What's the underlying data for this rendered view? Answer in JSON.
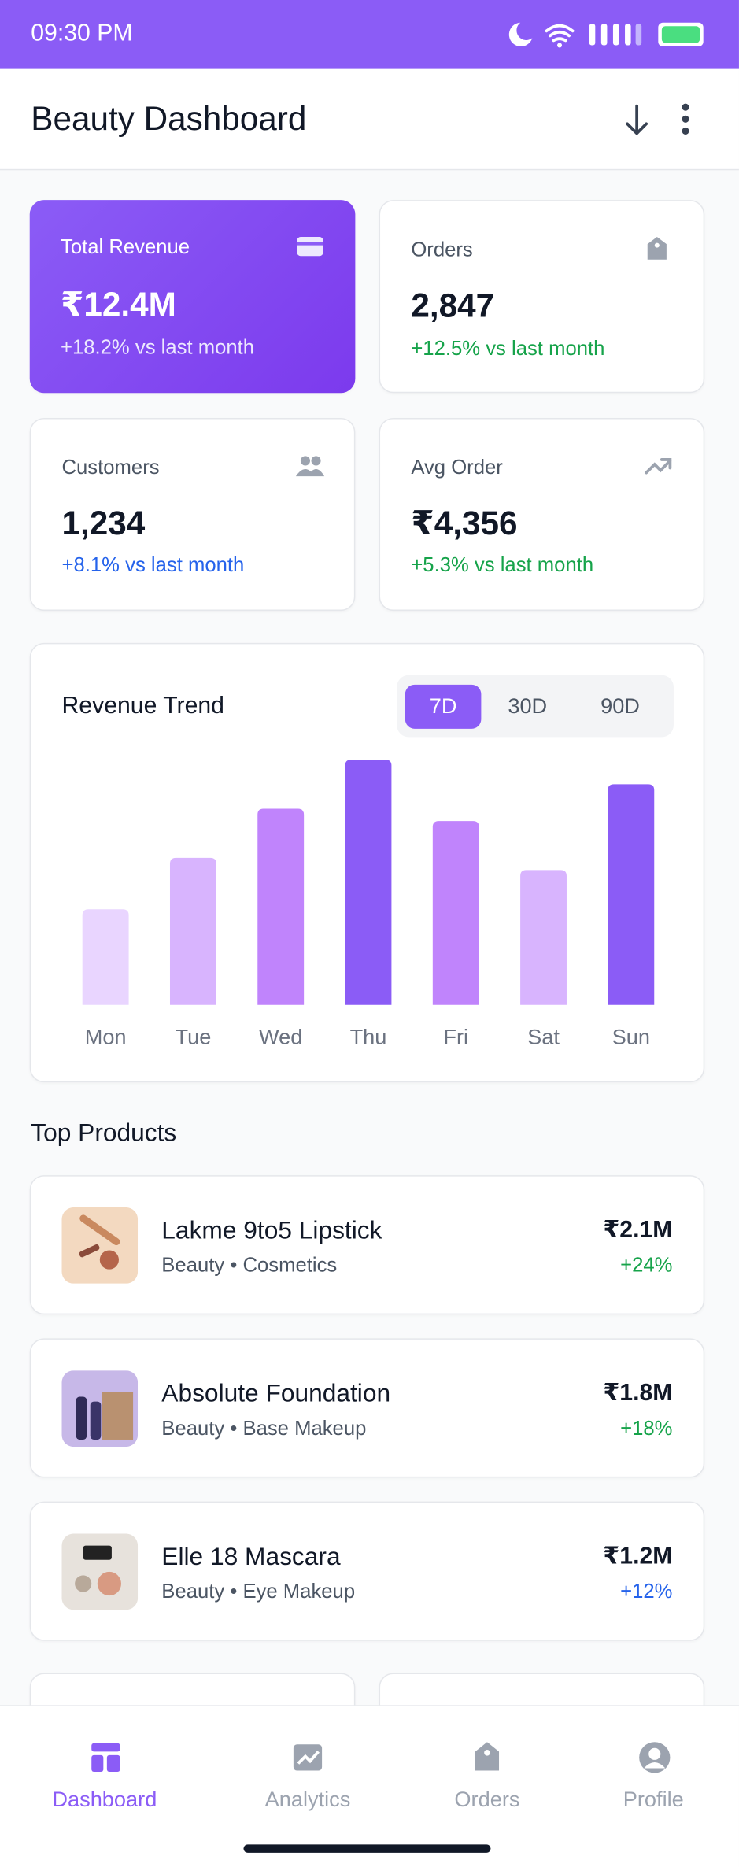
{
  "status_bar": {
    "time": "09:30 PM"
  },
  "header": {
    "title": "Beauty Dashboard"
  },
  "stats": [
    {
      "label": "Total Revenue",
      "value": "₹12.4M",
      "change": "+18.2% vs last month"
    },
    {
      "label": "Orders",
      "value": "2,847",
      "change": "+12.5% vs last month"
    },
    {
      "label": "Customers",
      "value": "1,234",
      "change": "+8.1% vs last month"
    },
    {
      "label": "Avg Order",
      "value": "₹4,356",
      "change": "+5.3% vs last month"
    }
  ],
  "revenue_trend": {
    "title": "Revenue Trend",
    "tabs": [
      "7D",
      "30D",
      "90D"
    ],
    "days": [
      "Mon",
      "Tue",
      "Wed",
      "Thu",
      "Fri",
      "Sat",
      "Sun"
    ],
    "values": [
      39,
      60,
      80,
      100,
      75,
      55,
      90
    ],
    "colors": [
      "#e9d5ff",
      "#d8b4fe",
      "#c084fc",
      "#8b5cf6",
      "#c084fc",
      "#d8b4fe",
      "#8b5cf6"
    ]
  },
  "top_products": {
    "title": "Top Products",
    "items": [
      {
        "name": "Lakme 9to5 Lipstick",
        "category": "Beauty • Cosmetics",
        "revenue": "₹2.1M",
        "growth": "+24%"
      },
      {
        "name": "Absolute Foundation",
        "category": "Beauty • Base Makeup",
        "revenue": "₹1.8M",
        "growth": "+18%"
      },
      {
        "name": "Elle 18 Mascara",
        "category": "Beauty • Eye Makeup",
        "revenue": "₹1.2M",
        "growth": "+12%"
      }
    ]
  },
  "nav": [
    "Dashboard",
    "Analytics",
    "Orders",
    "Profile"
  ]
}
